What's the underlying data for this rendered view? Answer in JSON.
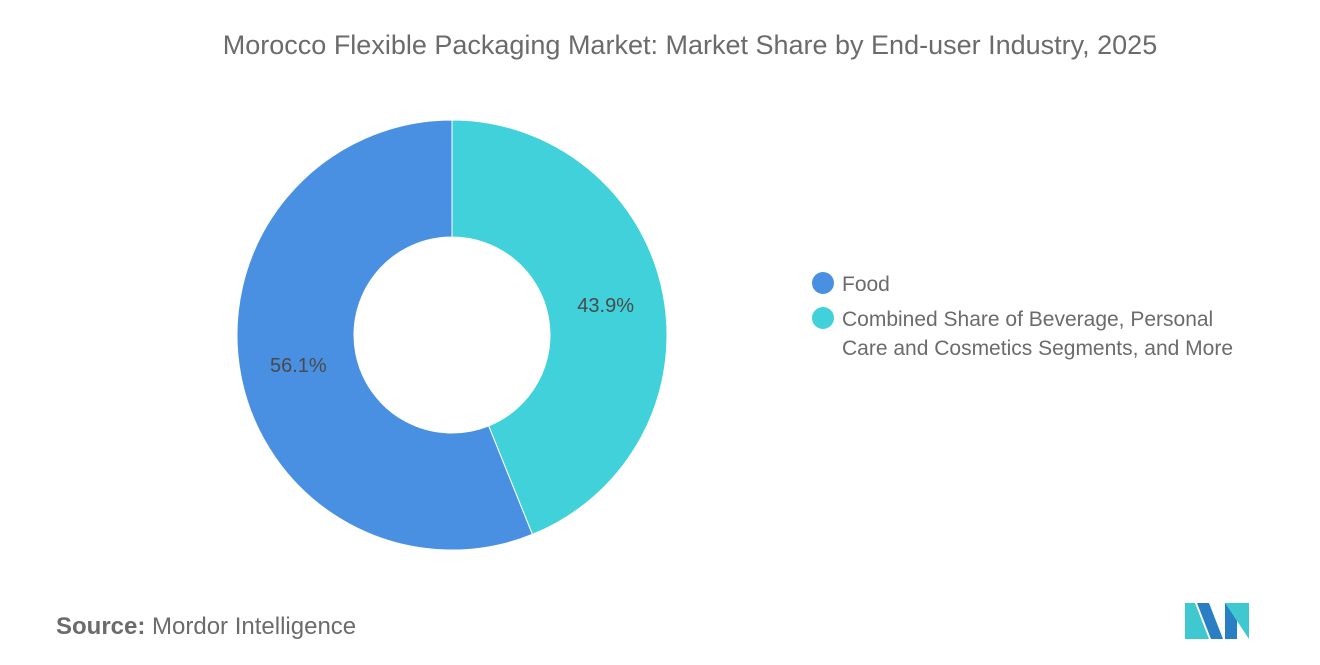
{
  "chart_data": {
    "type": "pie",
    "variant": "donut",
    "title": "Morocco Flexible Packaging Market: Market Share by End-user Industry, 2025",
    "slices": [
      {
        "label": "Combined Share of Beverage, Personal Care and Cosmetics Segments, and More",
        "value": 43.9,
        "data_label": "43.9%",
        "color": "#40d1da"
      },
      {
        "label": "Food",
        "value": 56.1,
        "data_label": "56.1%",
        "color": "#4a90e2"
      }
    ],
    "legend": {
      "placement": "right",
      "entries": [
        {
          "label": "Food",
          "color": "#4a90e2"
        },
        {
          "label": "Combined Share of Beverage, Personal Care and Cosmetics Segments, and More",
          "color": "#40d1da"
        }
      ]
    }
  },
  "source": {
    "label": "Source:",
    "value": "Mordor Intelligence"
  },
  "logo": {
    "text": "Mordor Intelligence",
    "colors": [
      "#2a7fc4",
      "#40c8d0"
    ]
  }
}
